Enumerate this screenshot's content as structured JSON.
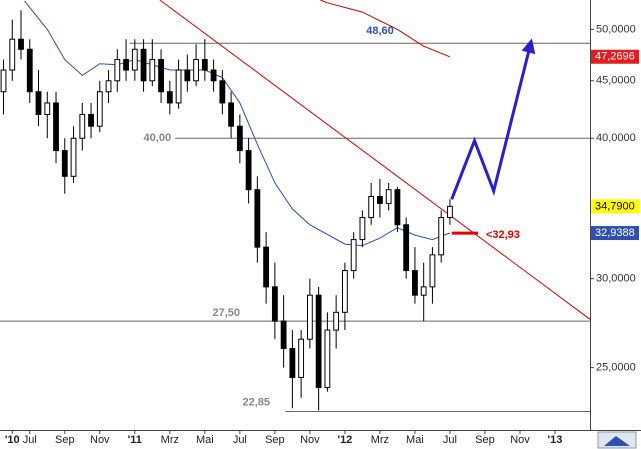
{
  "chart_data": {
    "type": "candlestick",
    "log_scale": true,
    "ylim": [
      22.0,
      53.1
    ],
    "xlim": [
      -1.7,
      32
    ],
    "yticks": [
      {
        "value": 25,
        "label": "25,0000"
      },
      {
        "value": 30,
        "label": "30,0000"
      },
      {
        "value": 40,
        "label": "40,0000"
      },
      {
        "value": 45,
        "label": "45,0000"
      },
      {
        "value": 50,
        "label": "50,0000"
      }
    ],
    "xticks": [
      {
        "value": -1,
        "label": "'10"
      },
      {
        "value": 0,
        "label": "Jul"
      },
      {
        "value": 2,
        "label": "Sep"
      },
      {
        "value": 4,
        "label": "Nov"
      },
      {
        "value": 6,
        "label": "'11"
      },
      {
        "value": 8,
        "label": "Mrz"
      },
      {
        "value": 10,
        "label": "Mai"
      },
      {
        "value": 12,
        "label": "Jul"
      },
      {
        "value": 14,
        "label": "Sep"
      },
      {
        "value": 16,
        "label": "Nov"
      },
      {
        "value": 18,
        "label": "'12"
      },
      {
        "value": 20,
        "label": "Mrz"
      },
      {
        "value": 22,
        "label": "Mai"
      },
      {
        "value": 24,
        "label": "Jul"
      },
      {
        "value": 26,
        "label": "Sep"
      },
      {
        "value": 28,
        "label": "Nov"
      },
      {
        "value": 30,
        "label": "'13"
      }
    ],
    "x": [
      -1.5,
      -1,
      -0.5,
      0,
      0.5,
      1,
      1.5,
      2,
      2.5,
      3,
      3.5,
      4,
      4.5,
      5,
      5.5,
      6,
      6.5,
      7,
      7.5,
      8,
      8.5,
      9,
      9.5,
      10,
      10.5,
      11,
      11.5,
      12,
      12.5,
      13,
      13.5,
      14,
      14.5,
      15,
      15.5,
      16,
      16.5,
      17,
      17.5,
      18,
      18.5,
      19,
      19.5,
      20,
      20.5,
      21,
      21.5,
      22,
      22.5,
      23,
      23.5,
      24
    ],
    "open": [
      44,
      46,
      49,
      48,
      44,
      42,
      43,
      39,
      37,
      40,
      42,
      41,
      44,
      45,
      47,
      46,
      48,
      45,
      47,
      44,
      43,
      46,
      45,
      47,
      46,
      45,
      43,
      41,
      39,
      36,
      32,
      29.5,
      27.5,
      26,
      24.5,
      26.5,
      29,
      24,
      27,
      28,
      30.5,
      32.5,
      34,
      35.5,
      35,
      36,
      33.5,
      30.5,
      29,
      29.5,
      31.5,
      34
    ],
    "high": [
      47,
      51,
      52,
      49,
      46,
      44,
      44,
      40,
      41,
      43,
      43,
      45,
      46,
      48,
      49,
      49,
      49,
      49,
      48,
      45,
      47,
      47.5,
      48.5,
      49,
      47,
      46,
      44,
      42,
      40,
      37,
      33,
      31,
      29,
      27,
      27,
      30,
      29.5,
      28,
      29,
      31,
      33,
      34.5,
      36.5,
      36.8,
      36.5,
      36.2,
      34,
      32,
      31,
      32,
      34.5,
      35.3
    ],
    "low": [
      42,
      45,
      47,
      43,
      41,
      40,
      38,
      35.7,
      36.5,
      39,
      40,
      40.5,
      43,
      44,
      45,
      45,
      44,
      44.5,
      43,
      42,
      42.5,
      44,
      44.5,
      45,
      44,
      42,
      40,
      38,
      35,
      31,
      28.5,
      26.5,
      25,
      23,
      23.5,
      26,
      22.9,
      23.8,
      26,
      27,
      30,
      32,
      33.5,
      34,
      34.5,
      33,
      30,
      28.5,
      27.5,
      28.5,
      31,
      33.5
    ],
    "close": [
      46,
      49,
      48,
      44,
      42,
      43,
      39,
      37,
      40,
      42,
      41,
      44,
      45,
      47,
      46,
      48,
      45,
      47,
      44,
      43,
      46,
      45,
      47,
      46,
      45,
      43,
      41,
      39,
      36,
      32,
      29.5,
      27.5,
      26,
      24.5,
      26.5,
      29,
      24,
      27,
      28,
      30.5,
      32.5,
      34,
      35.5,
      35,
      36,
      33.5,
      30.5,
      29,
      29.5,
      31.5,
      34,
      34.79
    ],
    "lines": [
      {
        "color": "#2a4fb0",
        "x": [
          -0.3,
          1,
          2,
          3,
          4,
          5,
          6,
          8,
          10,
          11,
          12,
          13,
          14,
          15,
          16,
          18,
          19,
          20,
          21,
          22,
          23,
          24
        ],
        "values": [
          53,
          50,
          47,
          45.5,
          46.6,
          46.5,
          47,
          46,
          46,
          45.3,
          43,
          39.5,
          36.5,
          34.6,
          33.5,
          32.2,
          32.1,
          32.6,
          33.3,
          32.8,
          32.5,
          32.94
        ]
      },
      {
        "color": "#cc0000",
        "x": [
          16.6,
          17,
          19,
          21,
          22.5,
          24
        ],
        "values": [
          53.1,
          52.8,
          51.8,
          50,
          48.3,
          47.27
        ]
      },
      {
        "color": "#dd0000",
        "x": [
          7.43,
          32
        ],
        "values": [
          53.1,
          27.6
        ]
      }
    ],
    "projection": {
      "color": "#2a1fd0",
      "x": [
        24.1,
        25.4,
        26.5,
        28.6
      ],
      "values": [
        35.3,
        39.8,
        35.9,
        48.5
      ]
    },
    "levels": [
      {
        "value": 48.6,
        "label": "48,60",
        "color": "#3050b0",
        "x": [
          5.7,
          32
        ]
      },
      {
        "value": 40,
        "label": "40,00",
        "color": "#888888",
        "x": [
          8.3,
          32
        ]
      },
      {
        "value": 27.5,
        "label": "27,50",
        "color": "#888888",
        "x": [
          -1.7,
          32
        ]
      },
      {
        "value": 22.85,
        "label": "22,85",
        "color": "#888888",
        "x": [
          14.6,
          32
        ]
      }
    ],
    "support": {
      "value": 32.93,
      "label": "<32,93",
      "color": "#e00000",
      "x": [
        24.1,
        25.6
      ]
    },
    "price_tags": [
      {
        "value": 47.2696,
        "label": "47,2696",
        "color": "#e02020",
        "text_color": "#ffffff"
      },
      {
        "value": 34.79,
        "label": "34,7900",
        "color": "#ffff00",
        "text_color": "#000000"
      },
      {
        "value": 32.9388,
        "label": "32,9388",
        "color": "#3050b0",
        "text_color": "#ffffff"
      }
    ]
  }
}
